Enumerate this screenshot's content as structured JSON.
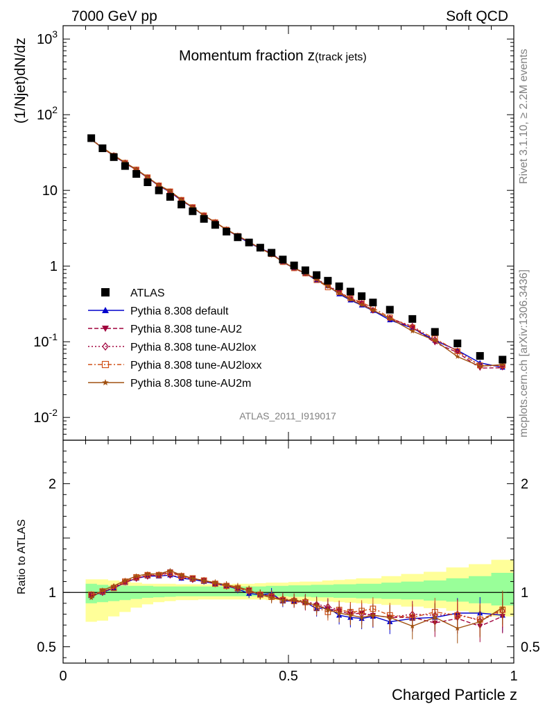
{
  "header": {
    "left": "7000 GeV pp",
    "right": "Soft QCD"
  },
  "side": {
    "rivet": "Rivet 3.1.10, ≥ 2.2M events",
    "mcplots": "mcplots.cern.ch [arXiv:1306.3436]"
  },
  "chart_data": {
    "type": "scatter",
    "title": "Momentum fraction z",
    "title_suffix": "(track jets)",
    "xlabel": "Charged Particle z",
    "ylabel": "(1/Njet)dN/dz",
    "ratio_ylabel": "Ratio to ATLAS",
    "analysis_label": "ATLAS_2011_I919017",
    "xlim": [
      0,
      1
    ],
    "ylim": [
      0.005,
      1500
    ],
    "yscale": "log",
    "ratio_ylim": [
      0.35,
      2.4
    ],
    "x_ticks": [
      "0",
      "0.5",
      "1"
    ],
    "y_ticks": [
      "10^-2",
      "10^-1",
      "1",
      "10",
      "10^2",
      "10^3"
    ],
    "ratio_ticks": [
      "0.5",
      "1",
      "2"
    ],
    "legend_position": "lower-left",
    "x": [
      0.0625,
      0.0875,
      0.1125,
      0.1375,
      0.1625,
      0.1875,
      0.2125,
      0.2375,
      0.2625,
      0.2875,
      0.3125,
      0.3375,
      0.3625,
      0.3875,
      0.4125,
      0.4375,
      0.4625,
      0.4875,
      0.5125,
      0.5375,
      0.5625,
      0.5875,
      0.6125,
      0.6375,
      0.6625,
      0.6875,
      0.725,
      0.775,
      0.825,
      0.875,
      0.925,
      0.975
    ],
    "data": {
      "name": "ATLAS",
      "values": [
        49.0,
        36.0,
        27.5,
        21.0,
        16.5,
        12.8,
        10.0,
        8.2,
        6.5,
        5.3,
        4.2,
        3.5,
        2.85,
        2.4,
        2.05,
        1.75,
        1.5,
        1.22,
        1.02,
        0.88,
        0.76,
        0.64,
        0.54,
        0.46,
        0.4,
        0.33,
        0.265,
        0.2,
        0.135,
        0.095,
        0.065,
        0.058
      ],
      "band_inner": [
        [
          0.9,
          1.08
        ],
        [
          0.91,
          1.07
        ],
        [
          0.92,
          1.06
        ],
        [
          0.93,
          1.06
        ],
        [
          0.94,
          1.06
        ],
        [
          0.95,
          1.06
        ],
        [
          0.955,
          1.055
        ],
        [
          0.96,
          1.055
        ],
        [
          0.965,
          1.055
        ],
        [
          0.965,
          1.055
        ],
        [
          0.965,
          1.055
        ],
        [
          0.965,
          1.055
        ],
        [
          0.965,
          1.055
        ],
        [
          0.965,
          1.055
        ],
        [
          0.965,
          1.055
        ],
        [
          0.965,
          1.055
        ],
        [
          0.965,
          1.06
        ],
        [
          0.965,
          1.06
        ],
        [
          0.96,
          1.065
        ],
        [
          0.96,
          1.065
        ],
        [
          0.955,
          1.07
        ],
        [
          0.955,
          1.07
        ],
        [
          0.95,
          1.075
        ],
        [
          0.95,
          1.075
        ],
        [
          0.945,
          1.08
        ],
        [
          0.945,
          1.08
        ],
        [
          0.94,
          1.09
        ],
        [
          0.935,
          1.1
        ],
        [
          0.925,
          1.11
        ],
        [
          0.915,
          1.13
        ],
        [
          0.9,
          1.15
        ],
        [
          0.88,
          1.18
        ]
      ],
      "band_outer": [
        [
          0.73,
          1.12
        ],
        [
          0.74,
          1.12
        ],
        [
          0.78,
          1.11
        ],
        [
          0.82,
          1.1
        ],
        [
          0.86,
          1.09
        ],
        [
          0.89,
          1.08
        ],
        [
          0.91,
          1.08
        ],
        [
          0.92,
          1.08
        ],
        [
          0.93,
          1.075
        ],
        [
          0.93,
          1.075
        ],
        [
          0.935,
          1.075
        ],
        [
          0.935,
          1.075
        ],
        [
          0.935,
          1.075
        ],
        [
          0.935,
          1.08
        ],
        [
          0.935,
          1.08
        ],
        [
          0.935,
          1.085
        ],
        [
          0.93,
          1.09
        ],
        [
          0.93,
          1.09
        ],
        [
          0.925,
          1.095
        ],
        [
          0.925,
          1.1
        ],
        [
          0.92,
          1.1
        ],
        [
          0.915,
          1.11
        ],
        [
          0.91,
          1.115
        ],
        [
          0.905,
          1.12
        ],
        [
          0.9,
          1.13
        ],
        [
          0.895,
          1.13
        ],
        [
          0.885,
          1.15
        ],
        [
          0.87,
          1.17
        ],
        [
          0.855,
          1.19
        ],
        [
          0.83,
          1.23
        ],
        [
          0.81,
          1.26
        ],
        [
          0.78,
          1.3
        ]
      ]
    },
    "series": [
      {
        "name": "Pythia 8.308 default",
        "color": "#0000cc",
        "marker": "triangle-up",
        "dash": "",
        "ratio": [
          0.97,
          1.0,
          1.04,
          1.09,
          1.13,
          1.15,
          1.15,
          1.16,
          1.13,
          1.12,
          1.1,
          1.08,
          1.06,
          1.03,
          0.99,
          0.98,
          0.99,
          0.92,
          0.92,
          0.91,
          0.85,
          0.86,
          0.79,
          0.77,
          0.76,
          0.78,
          0.73,
          0.76,
          0.77,
          0.81,
          0.81,
          0.79
        ]
      },
      {
        "name": "Pythia 8.308 tune-AU2",
        "color": "#a0003c",
        "marker": "triangle-down",
        "dash": "6,3",
        "ratio": [
          0.97,
          1.01,
          1.04,
          1.09,
          1.13,
          1.16,
          1.16,
          1.19,
          1.15,
          1.13,
          1.11,
          1.08,
          1.06,
          1.04,
          1.02,
          0.98,
          0.97,
          0.93,
          0.92,
          0.9,
          0.88,
          0.85,
          0.83,
          0.8,
          0.81,
          0.79,
          0.77,
          0.77,
          0.72,
          0.76,
          0.69,
          0.78
        ]
      },
      {
        "name": "Pythia 8.308 tune-AU2lox",
        "color": "#a0003c",
        "marker": "diamond-open",
        "dash": "2,3",
        "ratio": [
          0.98,
          1.0,
          1.05,
          1.1,
          1.13,
          1.15,
          1.16,
          1.16,
          1.14,
          1.12,
          1.11,
          1.08,
          1.06,
          1.04,
          1.01,
          0.98,
          0.96,
          0.94,
          0.93,
          0.92,
          0.89,
          0.87,
          0.84,
          0.82,
          0.8,
          0.79,
          0.77,
          0.8,
          0.79,
          0.8,
          0.74,
          0.83
        ]
      },
      {
        "name": "Pythia 8.308 tune-AU2loxx",
        "color": "#d05018",
        "marker": "square-open",
        "dash": "6,3,2,3",
        "ratio": [
          0.98,
          1.01,
          1.04,
          1.1,
          1.14,
          1.16,
          1.16,
          1.18,
          1.15,
          1.13,
          1.11,
          1.08,
          1.06,
          1.04,
          1.02,
          0.98,
          0.96,
          0.93,
          0.92,
          0.91,
          0.86,
          0.82,
          0.84,
          0.82,
          0.83,
          0.85,
          0.79,
          0.77,
          0.82,
          0.79,
          0.75,
          0.84
        ]
      },
      {
        "name": "Pythia 8.308 tune-AU2m",
        "color": "#a05010",
        "marker": "star",
        "dash": "",
        "ratio": [
          0.95,
          1.02,
          1.06,
          1.11,
          1.15,
          1.17,
          1.17,
          1.2,
          1.16,
          1.13,
          1.11,
          1.09,
          1.07,
          1.05,
          1.02,
          0.98,
          0.95,
          0.93,
          0.93,
          0.91,
          0.88,
          0.84,
          0.81,
          0.79,
          0.77,
          0.79,
          0.77,
          0.69,
          0.77,
          0.67,
          0.73,
          0.86
        ]
      }
    ]
  }
}
